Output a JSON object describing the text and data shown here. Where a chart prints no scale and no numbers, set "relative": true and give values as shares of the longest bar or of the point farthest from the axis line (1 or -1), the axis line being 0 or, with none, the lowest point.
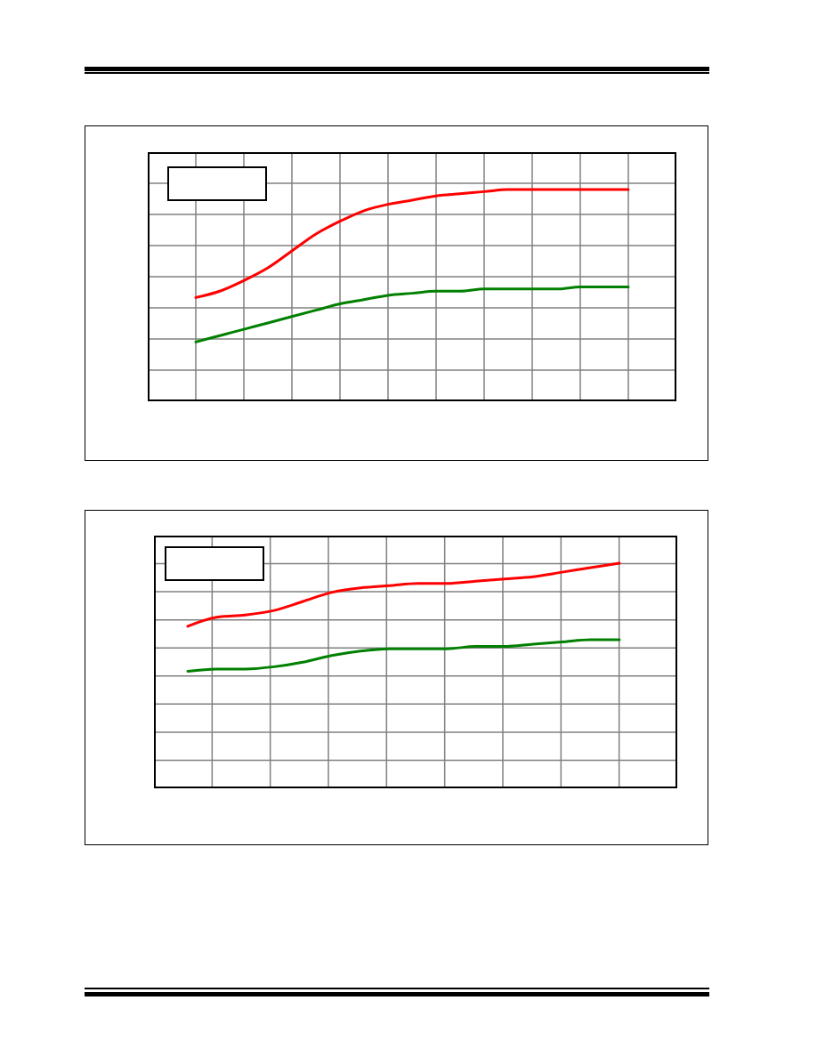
{
  "chart_data": [
    {
      "type": "line",
      "relative": true,
      "grid": true,
      "categories": [
        null,
        null,
        null,
        null,
        null,
        null,
        null,
        null,
        null,
        null,
        null,
        null,
        null,
        null,
        null,
        null,
        null,
        null,
        null
      ],
      "series": [
        {
          "color": "#ff0000",
          "values": [
            0.49,
            0.52,
            0.57,
            0.63,
            0.71,
            0.79,
            0.85,
            0.9,
            0.93,
            0.95,
            0.97,
            0.98,
            0.99,
            1,
            1,
            1,
            1,
            1,
            1
          ]
        },
        {
          "color": "#008000",
          "values": [
            0.28,
            0.31,
            0.34,
            0.37,
            0.4,
            0.43,
            0.46,
            0.48,
            0.5,
            0.51,
            0.52,
            0.52,
            0.53,
            0.53,
            0.53,
            0.53,
            0.54,
            0.54,
            0.54
          ]
        }
      ]
    },
    {
      "type": "line",
      "relative": true,
      "grid": true,
      "categories": [
        null,
        null,
        null,
        null,
        null,
        null,
        null,
        null,
        null,
        null,
        null,
        null,
        null,
        null,
        null,
        null
      ],
      "series": [
        {
          "color": "#ff0000",
          "values": [
            0.72,
            0.76,
            0.77,
            0.79,
            0.83,
            0.87,
            0.89,
            0.9,
            0.91,
            0.91,
            0.92,
            0.93,
            0.94,
            0.96,
            0.98,
            1
          ]
        },
        {
          "color": "#008000",
          "values": [
            0.52,
            0.53,
            0.53,
            0.54,
            0.56,
            0.59,
            0.61,
            0.62,
            0.62,
            0.62,
            0.63,
            0.63,
            0.64,
            0.65,
            0.66,
            0.66
          ]
        }
      ]
    }
  ]
}
